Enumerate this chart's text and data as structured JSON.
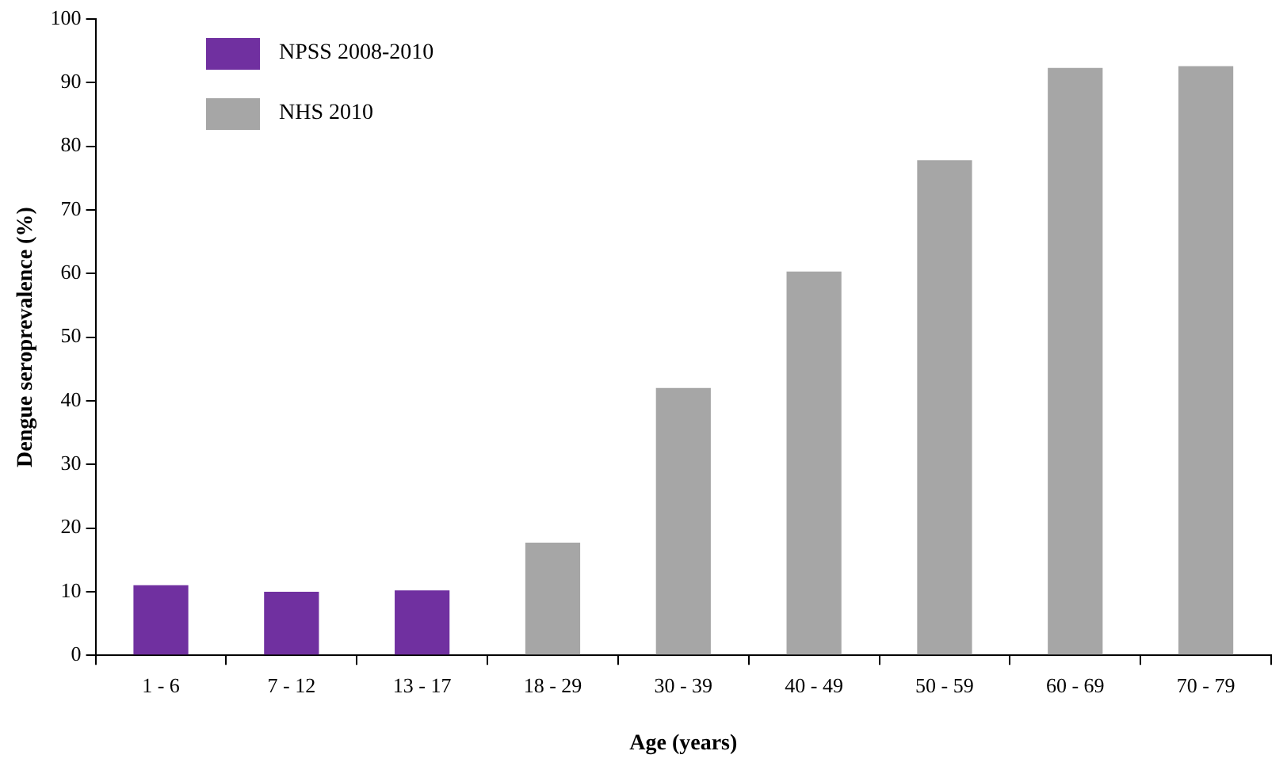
{
  "chart_data": {
    "type": "bar",
    "xlabel": "Age (years)",
    "ylabel": "Dengue seroprevalence (%)",
    "categories": [
      "1 - 6",
      "7 - 12",
      "13 - 17",
      "18 - 29",
      "30 - 39",
      "40 - 49",
      "50 - 59",
      "60 - 69",
      "70 - 79"
    ],
    "series": [
      {
        "name": "NPSS 2008-2010",
        "color": "#7030a0",
        "values": [
          11,
          10,
          10.2,
          null,
          null,
          null,
          null,
          null,
          null
        ]
      },
      {
        "name": "NHS 2010",
        "color": "#a6a6a6",
        "values": [
          null,
          null,
          null,
          17.7,
          42,
          60.3,
          77.8,
          92.3,
          92.6
        ]
      }
    ],
    "ylim": [
      0,
      100
    ],
    "yticks": [
      0,
      10,
      20,
      30,
      40,
      50,
      60,
      70,
      80,
      90,
      100
    ],
    "grid": false,
    "legend": "top left"
  }
}
